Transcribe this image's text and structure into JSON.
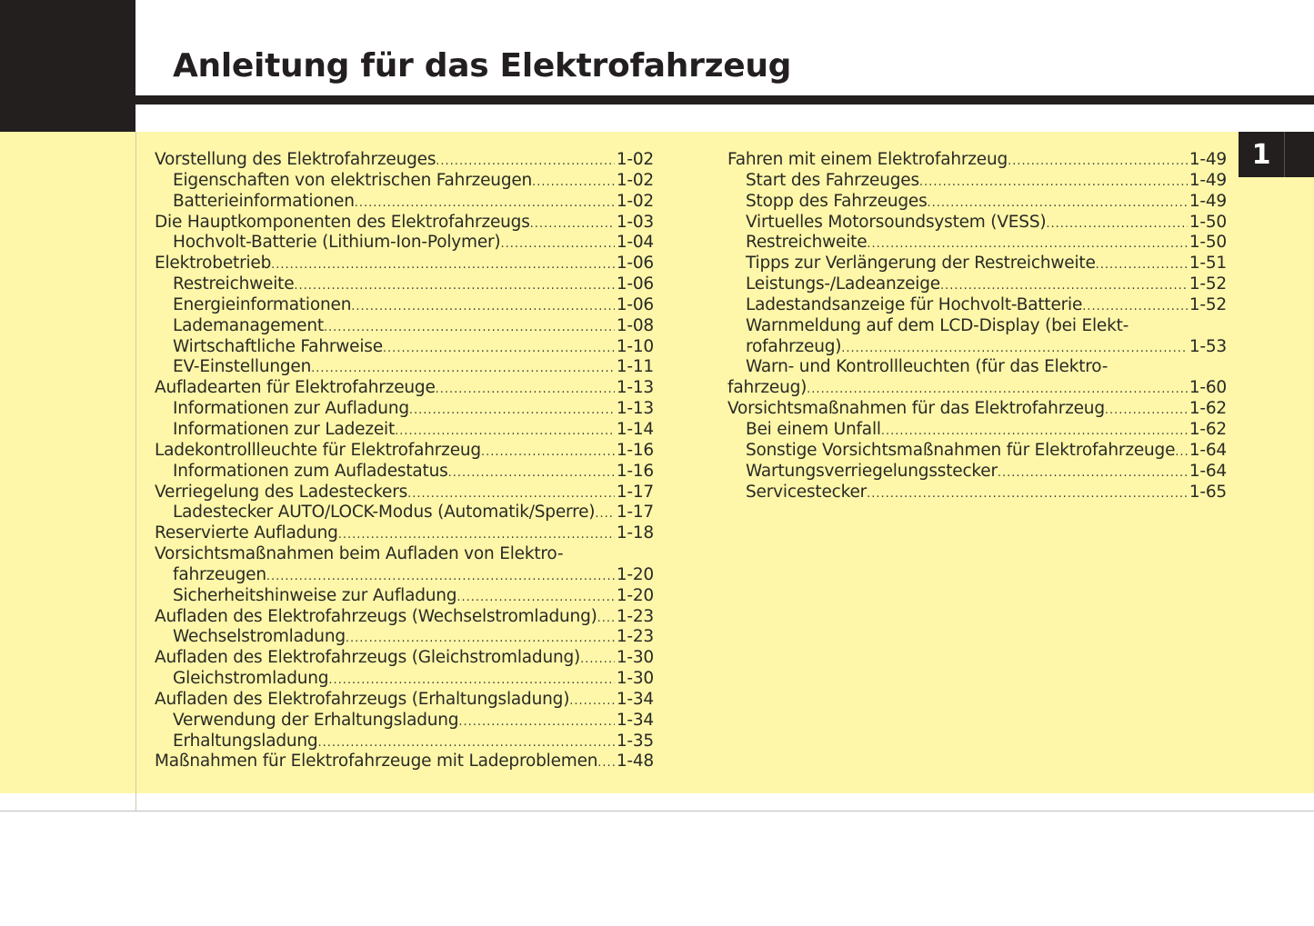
{
  "title": "Anleitung für das Elektrofahrzeug",
  "chapter_tab": "1",
  "colors": {
    "yellow": "#fef7a9",
    "black": "#221f1e"
  },
  "left_column": [
    {
      "text": "Vorstellung des Elektrofahrzeuges",
      "page": "1-02",
      "level": 0
    },
    {
      "text": "Eigenschaften von elektrischen Fahrzeugen",
      "page": "1-02",
      "level": 1
    },
    {
      "text": "Batterieinformationen",
      "page": "1-02",
      "level": 1
    },
    {
      "text": "Die Hauptkomponenten des Elektrofahrzeugs",
      "page": "1-03",
      "level": 0
    },
    {
      "text": "Hochvolt-Batterie (Lithium-Ion-Polymer)",
      "page": "1-04",
      "level": 1
    },
    {
      "text": "Elektrobetrieb",
      "page": "1-06",
      "level": 0
    },
    {
      "text": "Restreichweite",
      "page": "1-06",
      "level": 1
    },
    {
      "text": "Energieinformationen",
      "page": "1-06",
      "level": 1
    },
    {
      "text": "Lademanagement",
      "page": "1-08",
      "level": 1
    },
    {
      "text": "Wirtschaftliche Fahrweise",
      "page": "1-10",
      "level": 1
    },
    {
      "text": "EV-Einstellungen",
      "page": "1-11",
      "level": 1
    },
    {
      "text": "Aufladearten für Elektrofahrzeuge",
      "page": "1-13",
      "level": 0
    },
    {
      "text": "Informationen zur Aufladung",
      "page": "1-13",
      "level": 1
    },
    {
      "text": "Informationen zur Ladezeit",
      "page": "1-14",
      "level": 1
    },
    {
      "text": "Ladekontrollleuchte für Elektrofahrzeug",
      "page": "1-16",
      "level": 0
    },
    {
      "text": "Informationen zum Aufladestatus",
      "page": "1-16",
      "level": 1
    },
    {
      "text": "Verriegelung des Ladesteckers",
      "page": "1-17",
      "level": 0
    },
    {
      "text": "Ladestecker AUTO/LOCK-Modus (Automatik/Sperre)",
      "page": "1-17",
      "level": 1
    },
    {
      "text": "Reservierte Aufladung",
      "page": "1-18",
      "level": 0
    },
    {
      "text": "Vorsichtsmaßnahmen beim Aufladen von Elektro-",
      "page": "",
      "level": 0
    },
    {
      "text": "fahrzeugen",
      "page": "1-20",
      "level": 1
    },
    {
      "text": "Sicherheitshinweise zur Aufladung",
      "page": "1-20",
      "level": 1
    },
    {
      "text": "Aufladen des Elektrofahrzeugs (Wechselstromladung)",
      "page": "1-23",
      "level": 0
    },
    {
      "text": "Wechselstromladung",
      "page": "1-23",
      "level": 1
    },
    {
      "text": "Aufladen des Elektrofahrzeugs (Gleichstromladung)",
      "page": "1-30",
      "level": 0
    },
    {
      "text": "Gleichstromladung",
      "page": "1-30",
      "level": 1
    },
    {
      "text": "Aufladen des Elektrofahrzeugs (Erhaltungsladung)",
      "page": "1-34",
      "level": 0
    },
    {
      "text": "Verwendung der Erhaltungsladung",
      "page": "1-34",
      "level": 1
    },
    {
      "text": "Erhaltungsladung",
      "page": "1-35",
      "level": 1
    },
    {
      "text": "Maßnahmen für Elektrofahrzeuge mit Ladeproblemen",
      "page": "1-48",
      "level": 0
    }
  ],
  "right_column": [
    {
      "text": "Fahren mit einem Elektrofahrzeug",
      "page": "1-49",
      "level": 0
    },
    {
      "text": "Start des Fahrzeuges",
      "page": "1-49",
      "level": 1
    },
    {
      "text": "Stopp des Fahrzeuges",
      "page": "1-49",
      "level": 1
    },
    {
      "text": "Virtuelles Motorsoundsystem (VESS)",
      "page": "1-50",
      "level": 1
    },
    {
      "text": "Restreichweite",
      "page": "1-50",
      "level": 1
    },
    {
      "text": "Tipps zur Verlängerung der Restreichweite",
      "page": "1-51",
      "level": 1
    },
    {
      "text": "Leistungs-/Ladeanzeige",
      "page": "1-52",
      "level": 1
    },
    {
      "text": "Ladestandsanzeige für Hochvolt-Batterie",
      "page": "1-52",
      "level": 1
    },
    {
      "text": "Warnmeldung auf dem LCD-Display (bei Elekt-",
      "page": "",
      "level": 1
    },
    {
      "text": "rofahrzeug)",
      "page": "1-53",
      "level": 1
    },
    {
      "text": "Warn- und Kontrollleuchten (für das Elektro-",
      "page": "",
      "level": 1
    },
    {
      "text": "fahrzeug)",
      "page": "1-60",
      "level": 0
    },
    {
      "text": "Vorsichtsmaßnahmen für das Elektrofahrzeug",
      "page": "1-62",
      "level": 0
    },
    {
      "text": "Bei einem Unfall",
      "page": "1-62",
      "level": 1
    },
    {
      "text": "Sonstige Vorsichtsmaßnahmen für Elektrofahrzeuge",
      "page": "1-64",
      "level": 1
    },
    {
      "text": "Wartungsverriegelungsstecker",
      "page": "1-64",
      "level": 1
    },
    {
      "text": "Servicestecker",
      "page": "1-65",
      "level": 1
    }
  ]
}
